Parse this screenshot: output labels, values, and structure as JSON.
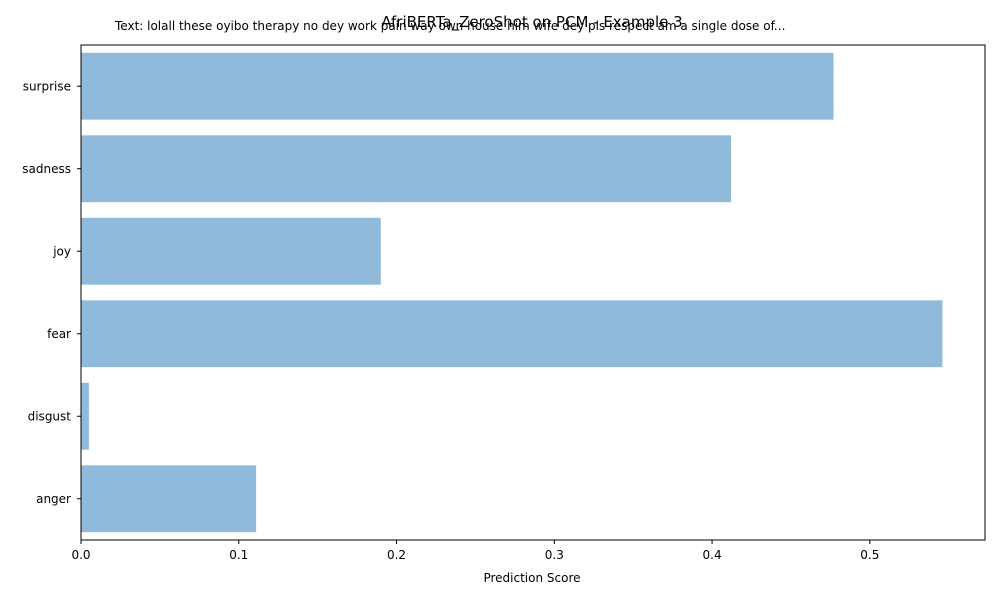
{
  "chart_data": {
    "type": "bar",
    "orientation": "horizontal",
    "title": "AfriBERTa_ZeroShot on PCM - Example 3",
    "subtitle": "Text: lolall these oyibo therapy no dey work pain way own house him wife dey pls respect am a single dose of...",
    "xlabel": "Prediction Score",
    "ylabel": "",
    "categories": [
      "surprise",
      "sadness",
      "joy",
      "fear",
      "disgust",
      "anger"
    ],
    "values": [
      0.477,
      0.412,
      0.19,
      0.546,
      0.005,
      0.111
    ],
    "xlim": [
      0,
      0.573
    ],
    "xticks": [
      0,
      0.1,
      0.2,
      0.3,
      0.4,
      0.5
    ],
    "xtick_labels": [
      "0.0",
      "0.1",
      "0.2",
      "0.3",
      "0.4",
      "0.5"
    ],
    "bar_color": "#8fbadb",
    "grid": false,
    "legend": "none"
  }
}
